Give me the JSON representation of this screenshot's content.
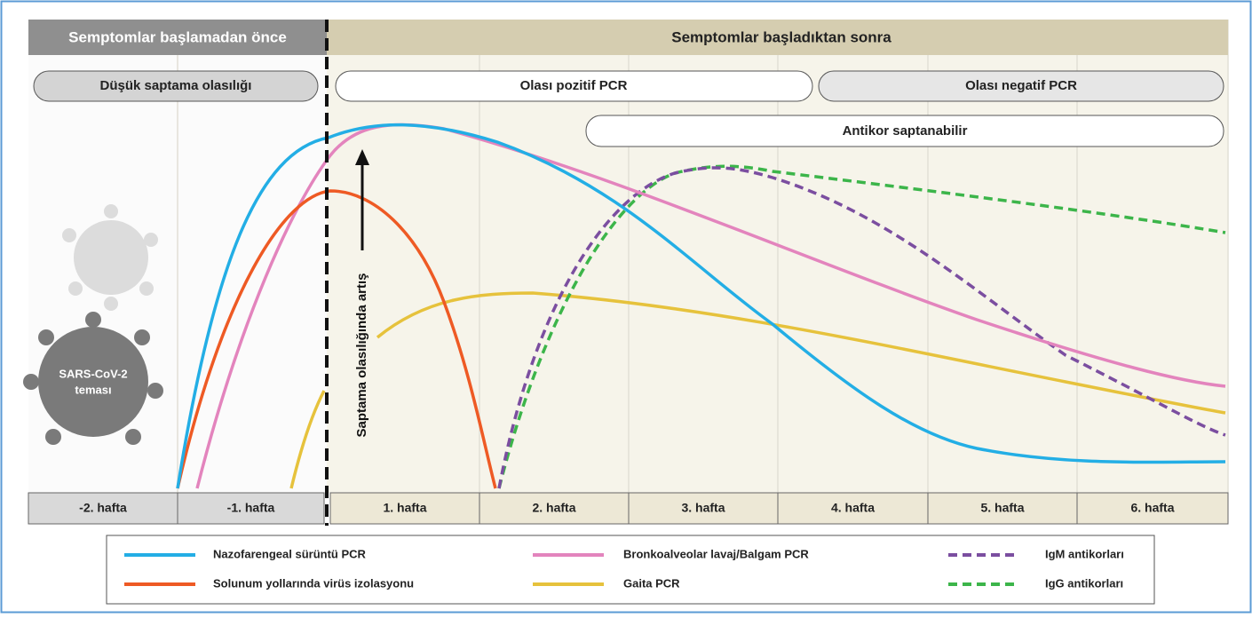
{
  "headers": {
    "before": "Semptomlar başlamadan önce",
    "after": "Semptomlar başladıktan sonra"
  },
  "phases": {
    "low": "Düşük saptama olasılığı",
    "positive": "Olası pozitif PCR",
    "negative": "Olası negatif PCR",
    "antibody": "Antikor saptanabilir"
  },
  "arrow_label": "Saptama olasılığında artış",
  "virus_label": [
    "SARS-CoV-2",
    "teması"
  ],
  "weeks": [
    "-2. hafta",
    "-1. hafta",
    "1. hafta",
    "2. hafta",
    "3. hafta",
    "4. hafta",
    "5. hafta",
    "6. hafta"
  ],
  "legend": [
    "Nazofarengeal sürüntü PCR",
    "Bronkoalveolar lavaj/Balgam PCR",
    "IgM antikorları",
    "Solunum yollarında virüs izolasyonu",
    "Gaita PCR",
    "IgG antikorları"
  ]
}
